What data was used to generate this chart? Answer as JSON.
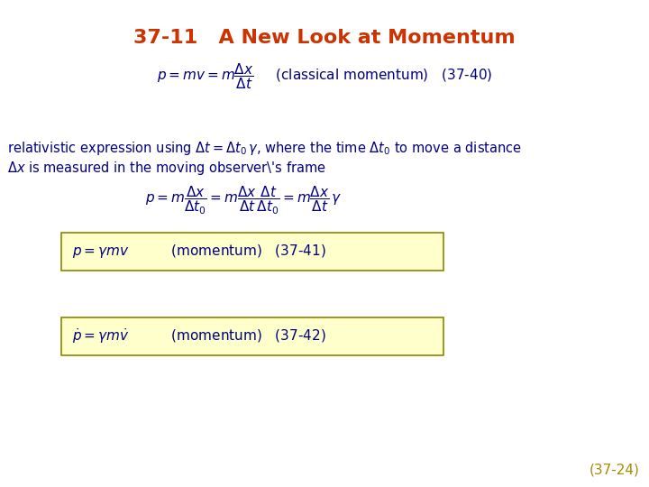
{
  "title": "37-11   A New Look at Momentum",
  "title_color": "#CC3300",
  "title_fontsize": 16,
  "bg_color": "#FFFFFF",
  "text_color": "#000080",
  "eq_color": "#000080",
  "page_num": "(37-24)",
  "page_num_color": "#AA8800",
  "box_facecolor": "#FFFFCC",
  "box_edgecolor": "#888800",
  "eq1": "$p = mv = m\\dfrac{\\Delta x}{\\Delta t}$     (classical momentum)   (37-40)",
  "text_line1": "relativistic expression using $\\Delta t = \\Delta t_0\\,\\gamma$, where the time $\\Delta t_0$ to move a distance",
  "text_line2": "$\\Delta x$ is measured in the moving observer's frame",
  "eq2": "$p = m\\dfrac{\\Delta x}{\\Delta t_0} = m\\dfrac{\\Delta x}{\\Delta t}\\dfrac{\\Delta t}{\\Delta t_0} = m\\dfrac{\\Delta x}{\\Delta t}\\,\\gamma$",
  "eq3": "$p = \\gamma mv$          (momentum)   (37-41)",
  "eq4": "$\\dot{p} = \\gamma m\\dot{v}$          (momentum)   (37-42)"
}
